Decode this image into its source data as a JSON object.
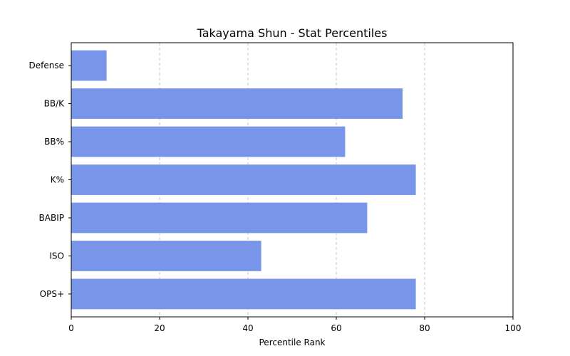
{
  "chart_data": {
    "type": "bar",
    "orientation": "horizontal",
    "title": "Takayama Shun - Stat Percentiles",
    "xlabel": "Percentile Rank",
    "ylabel": "",
    "xlim": [
      0,
      100
    ],
    "xticks": [
      0,
      20,
      40,
      60,
      80,
      100
    ],
    "grid": "x-dashed",
    "bar_color": "#7995e9",
    "categories": [
      "Defense",
      "BB/K",
      "BB%",
      "K%",
      "BABIP",
      "ISO",
      "OPS+"
    ],
    "values": [
      8,
      75,
      62,
      78,
      67,
      43,
      78
    ]
  }
}
